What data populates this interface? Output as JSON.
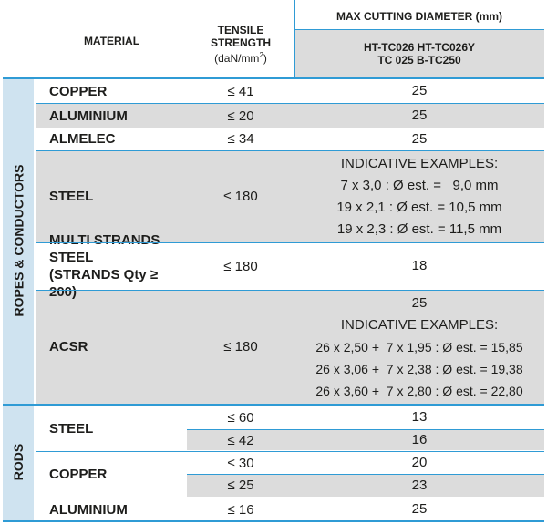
{
  "header": {
    "material": "MATERIAL",
    "tensile_line1": "TENSILE",
    "tensile_line2": "STRENGTH",
    "tensile_unit_prefix": "(daN/mm",
    "tensile_unit_sup": "2",
    "tensile_unit_suffix": ")",
    "max_cut": "MAX CUTTING DIAMETER (mm)",
    "models_line1": "HT-TC026  HT-TC026Y",
    "models_line2": "TC 025  B-TC250"
  },
  "groups": {
    "ropes": "ROPES & CONDUCTORS",
    "rods": "RODS"
  },
  "rows": {
    "copper": {
      "material": "COPPER",
      "tensile": "≤ 41",
      "value": "25"
    },
    "aluminium": {
      "material": "ALUMINIUM",
      "tensile": "≤ 20",
      "value": "25"
    },
    "almelec": {
      "material": "ALMELEC",
      "tensile": "≤ 34",
      "value": "25"
    },
    "steel": {
      "material": "STEEL",
      "tensile": "≤ 180",
      "lines": [
        "INDICATIVE EXAMPLES:",
        "7 x 3,0 : Ø est. =   9,0 mm",
        "19 x 2,1 : Ø est. = 10,5 mm",
        "19 x 2,3 : Ø est. = 11,5 mm"
      ]
    },
    "multi": {
      "material_line1": "MULTI STRANDS STEEL",
      "material_line2": "(STRANDS Qty ≥ 200)",
      "tensile": "≤ 180",
      "value": "18"
    },
    "acsr": {
      "material": "ACSR",
      "tensile": "≤ 180",
      "lines": [
        "25",
        "INDICATIVE EXAMPLES:",
        "26 x 2,50 +  7 x 1,95 : Ø est. = 15,85",
        "26 x 3,06 +  7 x 2,38 : Ø est. = 19,38",
        "26 x 3,60 +  7 x 2,80 : Ø est. = 22,80"
      ]
    },
    "rod_steel": {
      "material": "STEEL",
      "tensile_a": "≤ 60",
      "value_a": "13",
      "tensile_b": "≤ 42",
      "value_b": "16"
    },
    "rod_copper": {
      "material": "COPPER",
      "tensile_a": "≤ 30",
      "value_a": "20",
      "tensile_b": "≤ 25",
      "value_b": "23"
    },
    "rod_aluminium": {
      "material": "ALUMINIUM",
      "tensile": "≤ 16",
      "value": "25"
    }
  },
  "colors": {
    "rule": "#2f9bd5",
    "shade": "#dcdcdc",
    "side": "#cfe3f0"
  }
}
